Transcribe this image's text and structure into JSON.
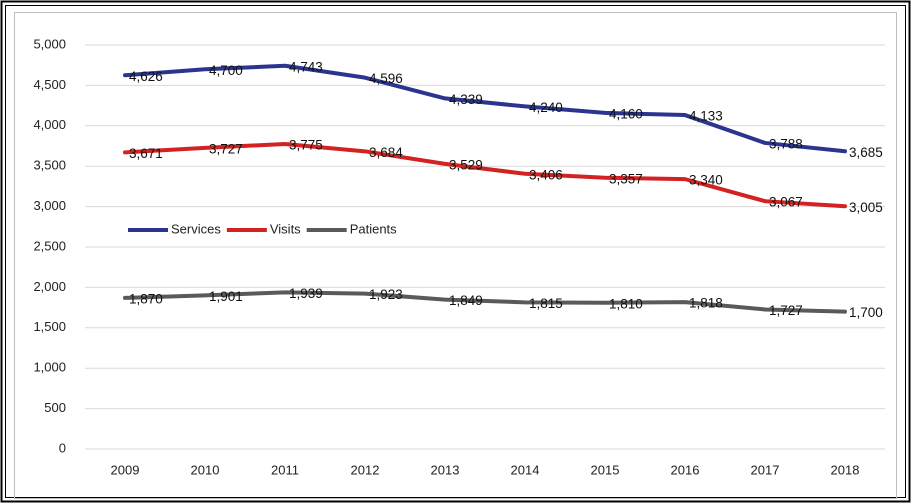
{
  "chart_data": {
    "type": "line",
    "categories": [
      "2009",
      "2010",
      "2011",
      "2012",
      "2013",
      "2014",
      "2015",
      "2016",
      "2017",
      "2018"
    ],
    "series": [
      {
        "name": "Services",
        "color": "#2b3590",
        "values": [
          4626,
          4700,
          4743,
          4596,
          4339,
          4240,
          4160,
          4133,
          3788,
          3685
        ],
        "value_labels": [
          "4,626",
          "4,700",
          "4,743",
          "4,596",
          "4,339",
          "4,240",
          "4,160",
          "4,133",
          "3,788",
          "3,685"
        ]
      },
      {
        "name": "Visits",
        "color": "#d32222",
        "values": [
          3671,
          3727,
          3775,
          3684,
          3529,
          3406,
          3357,
          3340,
          3067,
          3005
        ],
        "value_labels": [
          "3,671",
          "3,727",
          "3,775",
          "3,684",
          "3,529",
          "3,406",
          "3,357",
          "3,340",
          "3,067",
          "3,005"
        ]
      },
      {
        "name": "Patients",
        "color": "#5a5a5a",
        "values": [
          1870,
          1901,
          1939,
          1923,
          1849,
          1815,
          1810,
          1818,
          1727,
          1700
        ],
        "value_labels": [
          "1,870",
          "1,901",
          "1,939",
          "1,923",
          "1,849",
          "1,815",
          "1,810",
          "1,818",
          "1,727",
          "1,700"
        ]
      }
    ],
    "ylim": [
      0,
      5000
    ],
    "yticks": [
      0,
      500,
      {
        "value": 1000,
        "label": "1,000"
      },
      {
        "value": 1500,
        "label": "1,500"
      },
      {
        "value": 2000,
        "label": "2,000"
      },
      {
        "value": 2500,
        "label": "2,500"
      },
      {
        "value": 3000,
        "label": "3,000"
      },
      {
        "value": 3500,
        "label": "3,500"
      },
      {
        "value": 4000,
        "label": "4,000"
      },
      {
        "value": 4500,
        "label": "4,500"
      },
      {
        "value": 5000,
        "label": "5,000"
      }
    ],
    "grid": true,
    "legend": "left"
  }
}
